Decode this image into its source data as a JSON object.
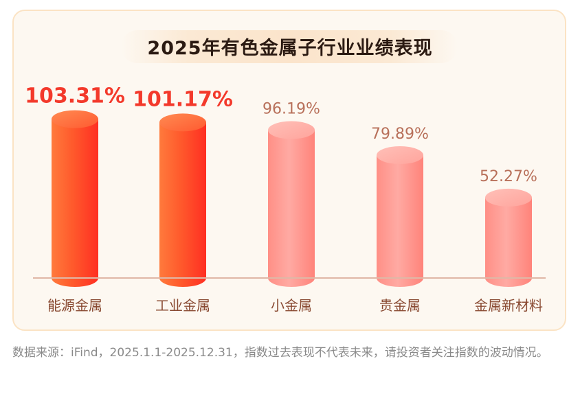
{
  "chart_data": {
    "type": "bar",
    "title": "2025年有色金属子行业业绩表现",
    "categories": [
      "能源金属",
      "工业金属",
      "小金属",
      "贵金属",
      "金属新材料"
    ],
    "values": [
      103.31,
      101.17,
      96.19,
      79.89,
      52.27
    ],
    "value_labels": [
      "103.31%",
      "101.17%",
      "96.19%",
      "79.89%",
      "52.27%"
    ],
    "unit": "%",
    "highlight_colors": [
      "#ff4a24",
      "#ff4a24",
      "#ff9e96",
      "#ff9e96",
      "#ff9e96"
    ],
    "label_colors": [
      "#f3392b",
      "#f3392b",
      "#b8705a",
      "#b8705a",
      "#b8705a"
    ],
    "xlabel": "",
    "ylabel": "",
    "grid": false,
    "legend": "none"
  },
  "footnote": "数据来源：iFind，2025.1.1-2025.12.31，指数过去表现不代表未来，请投资者关注指数的波动情况。"
}
